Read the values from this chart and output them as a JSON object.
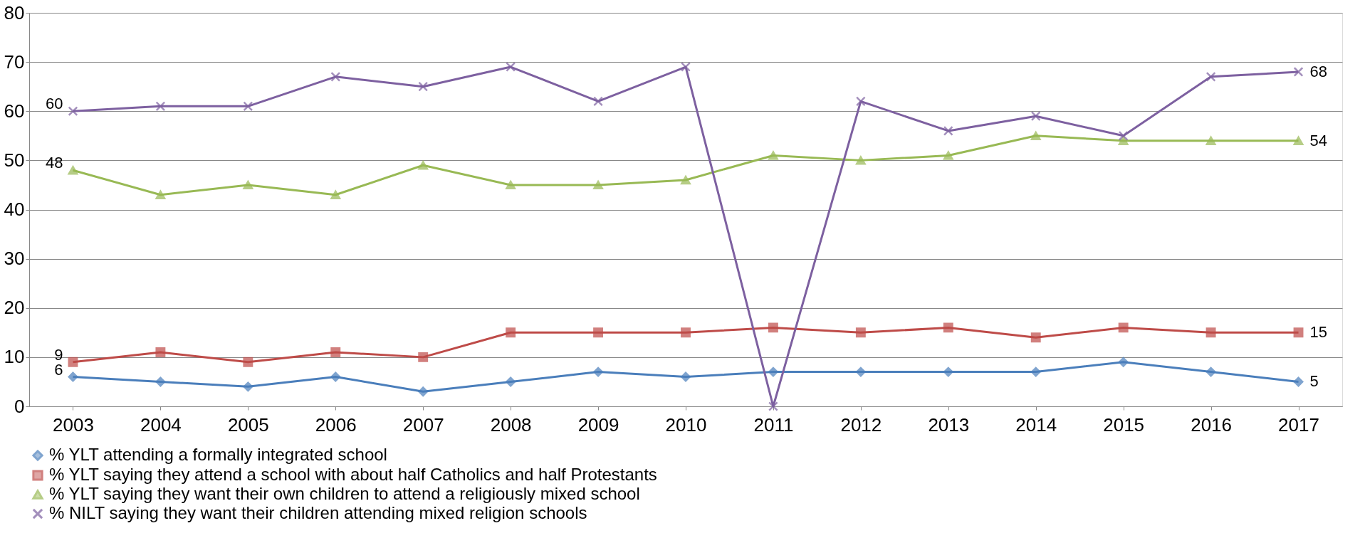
{
  "chart_data": {
    "type": "line",
    "categories": [
      "2003",
      "2004",
      "2005",
      "2006",
      "2007",
      "2008",
      "2009",
      "2010",
      "2011",
      "2012",
      "2013",
      "2014",
      "2015",
      "2016",
      "2017"
    ],
    "series": [
      {
        "name": "% YLT attending a formally integrated school",
        "color": "#4a7ebb",
        "marker": "diamond",
        "values": [
          6,
          5,
          4,
          6,
          3,
          5,
          7,
          6,
          7,
          7,
          7,
          7,
          9,
          7,
          5
        ],
        "value_labels": [
          "6",
          null,
          null,
          null,
          null,
          null,
          null,
          null,
          null,
          null,
          null,
          null,
          null,
          null,
          "5"
        ]
      },
      {
        "name": "% YLT saying they attend a school with about half Catholics and half Protestants",
        "color": "#be4b48",
        "marker": "square",
        "values": [
          9,
          11,
          9,
          11,
          10,
          15,
          15,
          15,
          16,
          15,
          16,
          14,
          16,
          15,
          15
        ],
        "value_labels": [
          "9",
          null,
          null,
          null,
          null,
          null,
          null,
          null,
          null,
          null,
          null,
          null,
          null,
          null,
          "15"
        ]
      },
      {
        "name": "% YLT saying they want their own children to attend a religiously mixed school",
        "color": "#98b954",
        "marker": "triangle",
        "values": [
          48,
          43,
          45,
          43,
          49,
          45,
          45,
          46,
          51,
          50,
          51,
          55,
          54,
          54,
          54
        ],
        "value_labels": [
          "48",
          null,
          null,
          null,
          null,
          null,
          null,
          null,
          null,
          null,
          null,
          null,
          null,
          null,
          "54"
        ]
      },
      {
        "name": "% NILT saying they want their children attending mixed religion schools",
        "color": "#7d60a0",
        "marker": "cross",
        "values": [
          60,
          61,
          61,
          67,
          65,
          69,
          62,
          69,
          0,
          62,
          56,
          59,
          55,
          67,
          68
        ],
        "value_labels": [
          "60",
          null,
          null,
          null,
          null,
          null,
          null,
          null,
          null,
          null,
          null,
          null,
          null,
          null,
          "68"
        ]
      }
    ],
    "ylim": [
      0,
      80
    ],
    "yticks": [
      0,
      10,
      20,
      30,
      40,
      50,
      60,
      70,
      80
    ],
    "grid": "y",
    "legend": "bottom",
    "line_style": "solid"
  }
}
